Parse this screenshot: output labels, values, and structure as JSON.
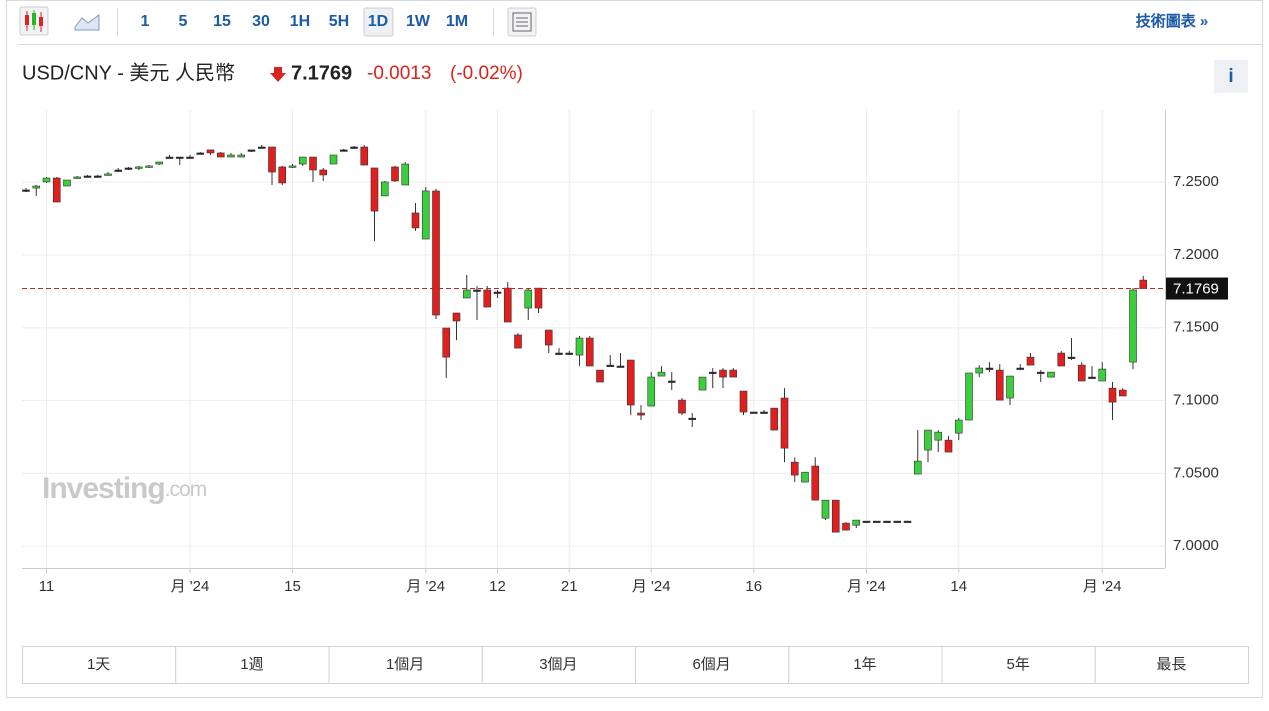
{
  "toolbar": {
    "intervals": [
      "1",
      "5",
      "15",
      "30",
      "1H",
      "5H",
      "1D",
      "1W",
      "1M"
    ],
    "active_interval": 6,
    "link": "技術圖表 »"
  },
  "header": {
    "pair": "USD/CNY - 美元 人民幣",
    "price": "7.1769",
    "change": "-0.0013",
    "change_percent": "(-0.02%)",
    "info": "i"
  },
  "watermark": {
    "brand": "Investing",
    "suffix": ".com"
  },
  "ranges": [
    "1天",
    "1週",
    "1個月",
    "3個月",
    "6個月",
    "1年",
    "5年",
    "最長"
  ],
  "chart_data": {
    "type": "candlestick",
    "categories": [
      null,
      null,
      "11",
      null,
      null,
      null,
      null,
      null,
      null,
      null,
      null,
      null,
      null,
      null,
      null,
      null,
      "月 '24",
      null,
      null,
      null,
      null,
      null,
      null,
      null,
      null,
      null,
      "15",
      null,
      null,
      null,
      null,
      null,
      null,
      null,
      null,
      null,
      null,
      null,
      null,
      "月 '24",
      null,
      null,
      null,
      null,
      null,
      null,
      "12",
      null,
      null,
      null,
      null,
      null,
      null,
      "21",
      null,
      null,
      null,
      null,
      null,
      null,
      null,
      "月 '24",
      null,
      null,
      null,
      null,
      null,
      null,
      null,
      null,
      null,
      "16",
      null,
      null,
      null,
      null,
      null,
      null,
      null,
      null,
      null,
      null,
      "月 '24",
      null,
      null,
      null,
      null,
      null,
      null,
      null,
      null,
      "14",
      null,
      null,
      null,
      null,
      null,
      null,
      null,
      null,
      null,
      null,
      null,
      null,
      null,
      "月 '24",
      null,
      null,
      null,
      null
    ],
    "open": [
      7.2446,
      7.2459,
      7.2501,
      7.2528,
      7.2473,
      7.2528,
      7.2542,
      7.2542,
      7.2549,
      7.2583,
      7.2597,
      7.2597,
      7.2604,
      7.2624,
      7.2672,
      7.2672,
      7.2672,
      7.27,
      7.2721,
      7.27,
      7.2672,
      7.2672,
      7.2721,
      7.2741,
      7.2741,
      7.2604,
      7.2604,
      7.2624,
      7.2672,
      7.2583,
      7.2624,
      7.2721,
      7.2741,
      7.2741,
      7.2597,
      7.2405,
      7.2604,
      7.248,
      7.2288,
      7.2109,
      7.2439,
      7.1498,
      7.1601,
      7.1704,
      7.1759,
      7.1759,
      7.1745,
      7.1772,
      7.145,
      7.1635,
      7.1772,
      7.1484,
      7.1326,
      7.1326,
      7.1312,
      7.1429,
      7.1209,
      7.1243,
      7.1237,
      7.1278,
      7.0914,
      7.0962,
      7.1168,
      7.1134,
      7.1003,
      7.0879,
      7.1072,
      7.1195,
      7.1209,
      7.1209,
      7.1065,
      7.0921,
      7.0921,
      7.0948,
      7.1017,
      7.0577,
      7.044,
      7.055,
      7.0192,
      7.0316,
      7.0158,
      7.0144,
      7.0172,
      7.0172,
      7.0172,
      7.0172,
      7.0172,
      7.0495,
      7.066,
      7.0728,
      7.0728,
      7.0776,
      7.0866,
      7.1189,
      7.1223,
      7.1209,
      7.1017,
      7.1223,
      7.1298,
      7.1195,
      7.1161,
      7.1326,
      7.1298,
      7.1243,
      7.1161,
      7.1134,
      7.1085,
      7.1072,
      7.1264,
      7.1827
    ],
    "high": [
      7.2459,
      7.248,
      7.2535,
      7.2535,
      7.2514,
      7.2542,
      7.2549,
      7.2549,
      7.2569,
      7.2597,
      7.2604,
      7.2611,
      7.2617,
      7.2638,
      7.2686,
      7.2672,
      7.2686,
      7.2707,
      7.2721,
      7.2707,
      7.27,
      7.27,
      7.2721,
      7.2755,
      7.2741,
      7.2611,
      7.2624,
      7.2672,
      7.2672,
      7.2597,
      7.2686,
      7.2728,
      7.2748,
      7.2755,
      7.2597,
      7.2508,
      7.2611,
      7.2638,
      7.2356,
      7.2466,
      7.2453,
      7.1498,
      7.1601,
      7.1862,
      7.1786,
      7.1786,
      7.1759,
      7.1814,
      7.1464,
      7.1772,
      7.1772,
      7.1484,
      7.136,
      7.134,
      7.1443,
      7.1443,
      7.1209,
      7.1312,
      7.1326,
      7.1278,
      7.0969,
      7.1195,
      7.1236,
      7.1195,
      7.1017,
      7.0914,
      7.1161,
      7.1223,
      7.1223,
      7.1223,
      7.1065,
      7.0921,
      7.0935,
      7.0948,
      7.1085,
      7.061,
      7.0508,
      7.061,
      7.0316,
      7.0316,
      7.0165,
      7.0179,
      7.0172,
      7.0172,
      7.0172,
      7.0172,
      7.0172,
      7.0797,
      7.0797,
      7.0797,
      7.0756,
      7.088,
      7.1189,
      7.1243,
      7.1264,
      7.125,
      7.1168,
      7.125,
      7.1326,
      7.1209,
      7.1195,
      7.134,
      7.1429,
      7.1264,
      7.1236,
      7.1264,
      7.1127,
      7.1085,
      7.1772,
      7.1855
    ],
    "low": [
      7.2432,
      7.2405,
      7.2494,
      7.2363,
      7.2473,
      7.2528,
      7.2535,
      7.2535,
      7.2549,
      7.2569,
      7.2583,
      7.2583,
      7.2597,
      7.2617,
      7.2672,
      7.2617,
      7.2672,
      7.27,
      7.2686,
      7.2672,
      7.2672,
      7.2672,
      7.2707,
      7.2741,
      7.248,
      7.248,
      7.2597,
      7.2611,
      7.2501,
      7.2508,
      7.2624,
      7.2714,
      7.2728,
      7.2617,
      7.2095,
      7.2405,
      7.2501,
      7.248,
      7.2165,
      7.2109,
      7.156,
      7.1154,
      7.1415,
      7.1704,
      7.1553,
      7.1642,
      7.1704,
      7.1539,
      7.136,
      7.1553,
      7.1601,
      7.1326,
      7.1312,
      7.1312,
      7.1237,
      7.1237,
      7.1127,
      7.1237,
      7.1237,
      7.09,
      7.0866,
      7.0962,
      7.1168,
      7.1072,
      7.09,
      7.0818,
      7.1072,
      7.1085,
      7.1085,
      7.1161,
      7.09,
      7.0921,
      7.0921,
      7.0797,
      7.0577,
      7.044,
      7.044,
      7.0316,
      7.0179,
      7.0096,
      7.011,
      7.0124,
      7.0172,
      7.0172,
      7.0172,
      7.0172,
      7.0172,
      7.0495,
      7.0577,
      7.0646,
      7.0646,
      7.0728,
      7.0866,
      7.1161,
      7.1195,
      7.1003,
      7.0969,
      7.1209,
      7.1243,
      7.1127,
      7.1161,
      7.1237,
      7.1278,
      7.1134,
      7.1161,
      7.1134,
      7.0866,
      7.1031,
      7.1216,
      7.1769
    ],
    "close": [
      7.2446,
      7.2473,
      7.2528,
      7.2363,
      7.2514,
      7.2535,
      7.2542,
      7.2542,
      7.2556,
      7.2583,
      7.2597,
      7.2604,
      7.2611,
      7.2638,
      7.2672,
      7.2672,
      7.2672,
      7.27,
      7.27,
      7.2672,
      7.2686,
      7.2686,
      7.2721,
      7.2741,
      7.2569,
      7.2494,
      7.2611,
      7.2672,
      7.2583,
      7.2549,
      7.2686,
      7.2721,
      7.2741,
      7.2617,
      7.2301,
      7.2501,
      7.2508,
      7.2624,
      7.2185,
      7.2439,
      7.1587,
      7.1298,
      7.1546,
      7.1759,
      7.1759,
      7.1642,
      7.1745,
      7.1539,
      7.136,
      7.1759,
      7.1635,
      7.1381,
      7.1326,
      7.1326,
      7.1429,
      7.1237,
      7.1127,
      7.1243,
      7.1237,
      7.0969,
      7.09,
      7.1161,
      7.1195,
      7.1134,
      7.0914,
      7.0879,
      7.1161,
      7.1195,
      7.1161,
      7.1161,
      7.0921,
      7.0921,
      7.0921,
      7.0797,
      7.0673,
      7.0488,
      7.0508,
      7.0316,
      7.0316,
      7.0096,
      7.011,
      7.0179,
      7.0172,
      7.0172,
      7.0172,
      7.0172,
      7.0172,
      7.0584,
      7.0797,
      7.0783,
      7.0646,
      7.0866,
      7.1189,
      7.1223,
      7.1223,
      7.1003,
      7.1168,
      7.1223,
      7.1243,
      7.1195,
      7.1195,
      7.1237,
      7.1298,
      7.1134,
      7.1161,
      7.1216,
      7.0989,
      7.1031,
      7.1759,
      7.1769
    ],
    "up_color": "#3cce3c",
    "down_color": "#e0201e",
    "last_price_color": "#c0282a",
    "ylim": [
      6.985,
      7.2995
    ],
    "yticks": [
      {
        "value": 7,
        "label": "7.0000"
      },
      {
        "value": 7.05,
        "label": "7.0500"
      },
      {
        "value": 7.1,
        "label": "7.1000"
      },
      {
        "value": 7.15,
        "label": "7.1500"
      },
      {
        "value": 7.2,
        "label": "7.2000"
      },
      {
        "value": 7.25,
        "label": "7.2500"
      }
    ],
    "grid": true
  }
}
